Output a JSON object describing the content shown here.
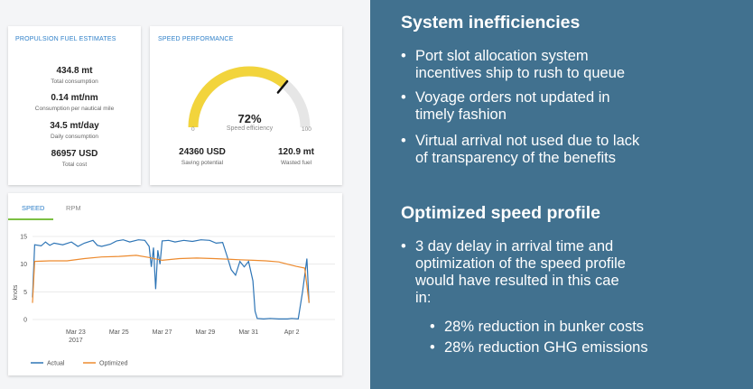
{
  "fuel_card": {
    "title": "PROPULSION FUEL ESTIMATES",
    "metrics": [
      {
        "value": "434.8 mt",
        "label": "Total consumption"
      },
      {
        "value": "0.14 mt/nm",
        "label": "Consumption per nautical mile"
      },
      {
        "value": "34.5 mt/day",
        "label": "Daily consumption"
      },
      {
        "value": "86957 USD",
        "label": "Total cost"
      }
    ]
  },
  "speed_card": {
    "title": "SPEED PERFORMANCE",
    "gauge": {
      "value_pct": 72,
      "value_text": "72%",
      "label": "Speed efficiency",
      "min": "0",
      "max": "100",
      "fill_color": "#f2d43c",
      "track_color": "#e6e6e6"
    },
    "saving": {
      "value": "24360 USD",
      "label": "Saving potential"
    },
    "wasted": {
      "value": "120.9 mt",
      "label": "Wasted fuel"
    }
  },
  "chart_card": {
    "tabs": [
      {
        "label": "SPEED",
        "active": true
      },
      {
        "label": "RPM",
        "active": false
      }
    ],
    "legend": [
      {
        "name": "Actual",
        "color": "#2e75b6"
      },
      {
        "name": "Optimized",
        "color": "#ed8b2f"
      }
    ]
  },
  "chart_data": {
    "type": "line",
    "ylabel": "knots",
    "xlabel": "",
    "ylim": [
      0,
      15
    ],
    "yticks": [
      0,
      5,
      10,
      15
    ],
    "xlim": [
      0,
      14
    ],
    "xticks": [
      {
        "x": 2,
        "label": "Mar 23",
        "sub": "2017"
      },
      {
        "x": 4,
        "label": "Mar 25",
        "sub": ""
      },
      {
        "x": 6,
        "label": "Mar 27",
        "sub": ""
      },
      {
        "x": 8,
        "label": "Mar 29",
        "sub": ""
      },
      {
        "x": 10,
        "label": "Mar 31",
        "sub": ""
      },
      {
        "x": 12,
        "label": "Apr 2",
        "sub": ""
      }
    ],
    "series": [
      {
        "name": "Actual",
        "color": "#2e75b6",
        "points": [
          [
            0,
            4
          ],
          [
            0.1,
            13.5
          ],
          [
            0.4,
            13.3
          ],
          [
            0.6,
            14.0
          ],
          [
            0.8,
            13.4
          ],
          [
            1.0,
            13.8
          ],
          [
            1.4,
            13.5
          ],
          [
            1.8,
            14.0
          ],
          [
            2.1,
            13.2
          ],
          [
            2.4,
            13.8
          ],
          [
            2.8,
            14.3
          ],
          [
            3.0,
            13.4
          ],
          [
            3.2,
            13.2
          ],
          [
            3.6,
            13.6
          ],
          [
            3.9,
            14.2
          ],
          [
            4.2,
            14.4
          ],
          [
            4.5,
            14.0
          ],
          [
            4.9,
            14.4
          ],
          [
            5.2,
            14.3
          ],
          [
            5.4,
            13.2
          ],
          [
            5.5,
            9.5
          ],
          [
            5.6,
            13.0
          ],
          [
            5.7,
            5.5
          ],
          [
            5.8,
            12.5
          ],
          [
            5.9,
            10.0
          ],
          [
            6.0,
            14.2
          ],
          [
            6.3,
            14.3
          ],
          [
            6.6,
            14.0
          ],
          [
            7.0,
            14.3
          ],
          [
            7.4,
            14.1
          ],
          [
            7.8,
            14.4
          ],
          [
            8.2,
            14.3
          ],
          [
            8.5,
            13.8
          ],
          [
            8.8,
            13.9
          ],
          [
            9.0,
            11.5
          ],
          [
            9.2,
            9.0
          ],
          [
            9.4,
            8.0
          ],
          [
            9.6,
            10.5
          ],
          [
            9.8,
            9.5
          ],
          [
            10.0,
            10.5
          ],
          [
            10.2,
            7.0
          ],
          [
            10.3,
            1.5
          ],
          [
            10.4,
            0.2
          ],
          [
            10.7,
            0.1
          ],
          [
            11.0,
            0.2
          ],
          [
            11.4,
            0.1
          ],
          [
            11.8,
            0.1
          ],
          [
            12.0,
            0.2
          ],
          [
            12.3,
            0.1
          ],
          [
            12.5,
            5.0
          ],
          [
            12.7,
            11.0
          ],
          [
            12.8,
            3.0
          ]
        ]
      },
      {
        "name": "Optimized",
        "color": "#ed8b2f",
        "points": [
          [
            0,
            3
          ],
          [
            0.1,
            10.5
          ],
          [
            0.8,
            10.6
          ],
          [
            1.6,
            10.6
          ],
          [
            2.4,
            11.0
          ],
          [
            3.2,
            11.3
          ],
          [
            4.0,
            11.4
          ],
          [
            4.8,
            11.6
          ],
          [
            5.4,
            11.2
          ],
          [
            6.0,
            10.7
          ],
          [
            6.8,
            11.0
          ],
          [
            7.6,
            11.1
          ],
          [
            8.4,
            11.0
          ],
          [
            9.0,
            10.9
          ],
          [
            9.6,
            10.8
          ],
          [
            10.2,
            10.7
          ],
          [
            10.8,
            10.6
          ],
          [
            11.4,
            10.4
          ],
          [
            11.8,
            10.0
          ],
          [
            12.2,
            9.6
          ],
          [
            12.6,
            9.3
          ],
          [
            12.8,
            3.0
          ]
        ]
      }
    ]
  },
  "right_panel": {
    "heading1": "System inefficiencies",
    "bullets1": [
      [
        "Port slot allocation system",
        "incentives ship to rush to queue"
      ],
      [
        "Voyage orders not updated in",
        "timely fashion"
      ],
      [
        "Virtual arrival not used due to lack",
        "of transparency of the benefits"
      ]
    ],
    "heading2": "Optimized speed profile",
    "bullet2": [
      "3 day delay in arrival time and",
      "optimization of the speed profile",
      "would have resulted in this cae",
      "in:"
    ],
    "sub_bullets": [
      "28% reduction in bunker costs",
      "28% reduction GHG emissions"
    ],
    "bullet_char": "•"
  }
}
